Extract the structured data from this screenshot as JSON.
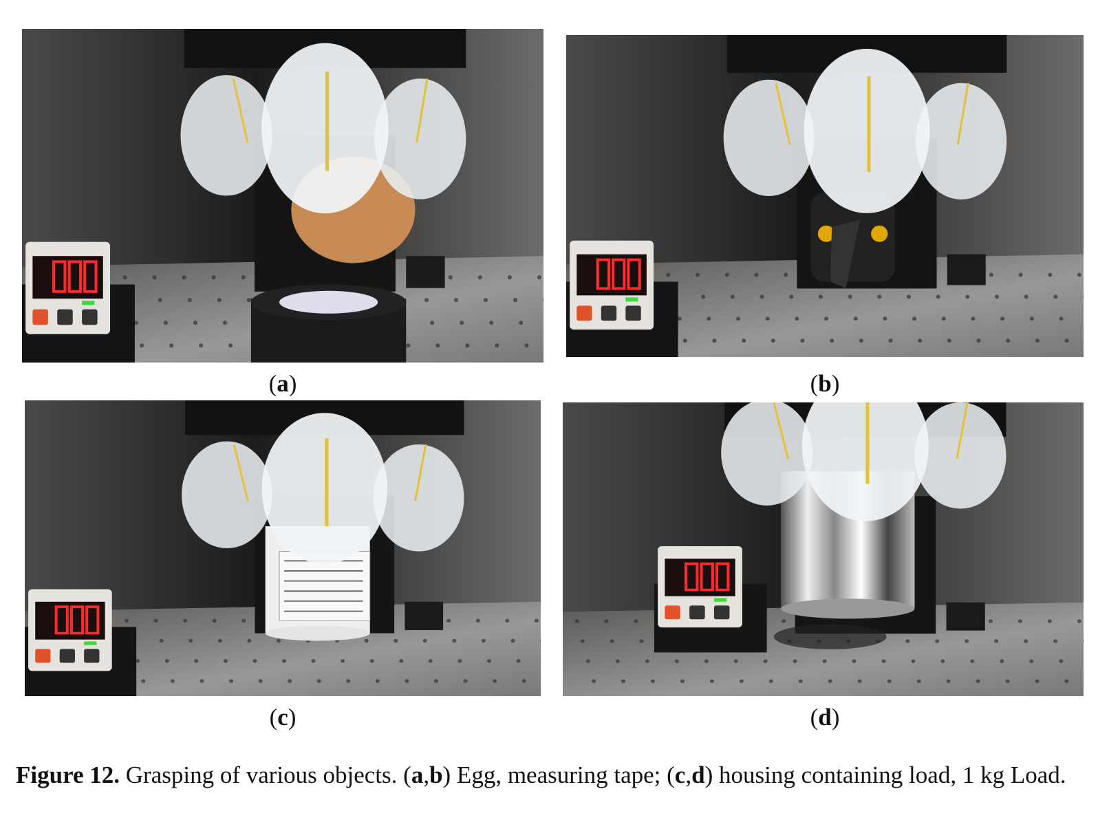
{
  "panels": [
    {
      "label": [
        "(",
        "a",
        ")"
      ]
    },
    {
      "label": [
        "(",
        "b",
        ")"
      ]
    },
    {
      "label": [
        "(",
        "c",
        ")"
      ]
    },
    {
      "label": [
        "(",
        "d",
        ")"
      ]
    }
  ],
  "caption": {
    "label": "Figure 12.",
    "parts": [
      " Grasping of various objects. (",
      "a",
      ",",
      "b",
      ") Egg, measuring tape; (",
      "c",
      ",",
      "d",
      ") housing containing load, 1 kg Load."
    ]
  }
}
